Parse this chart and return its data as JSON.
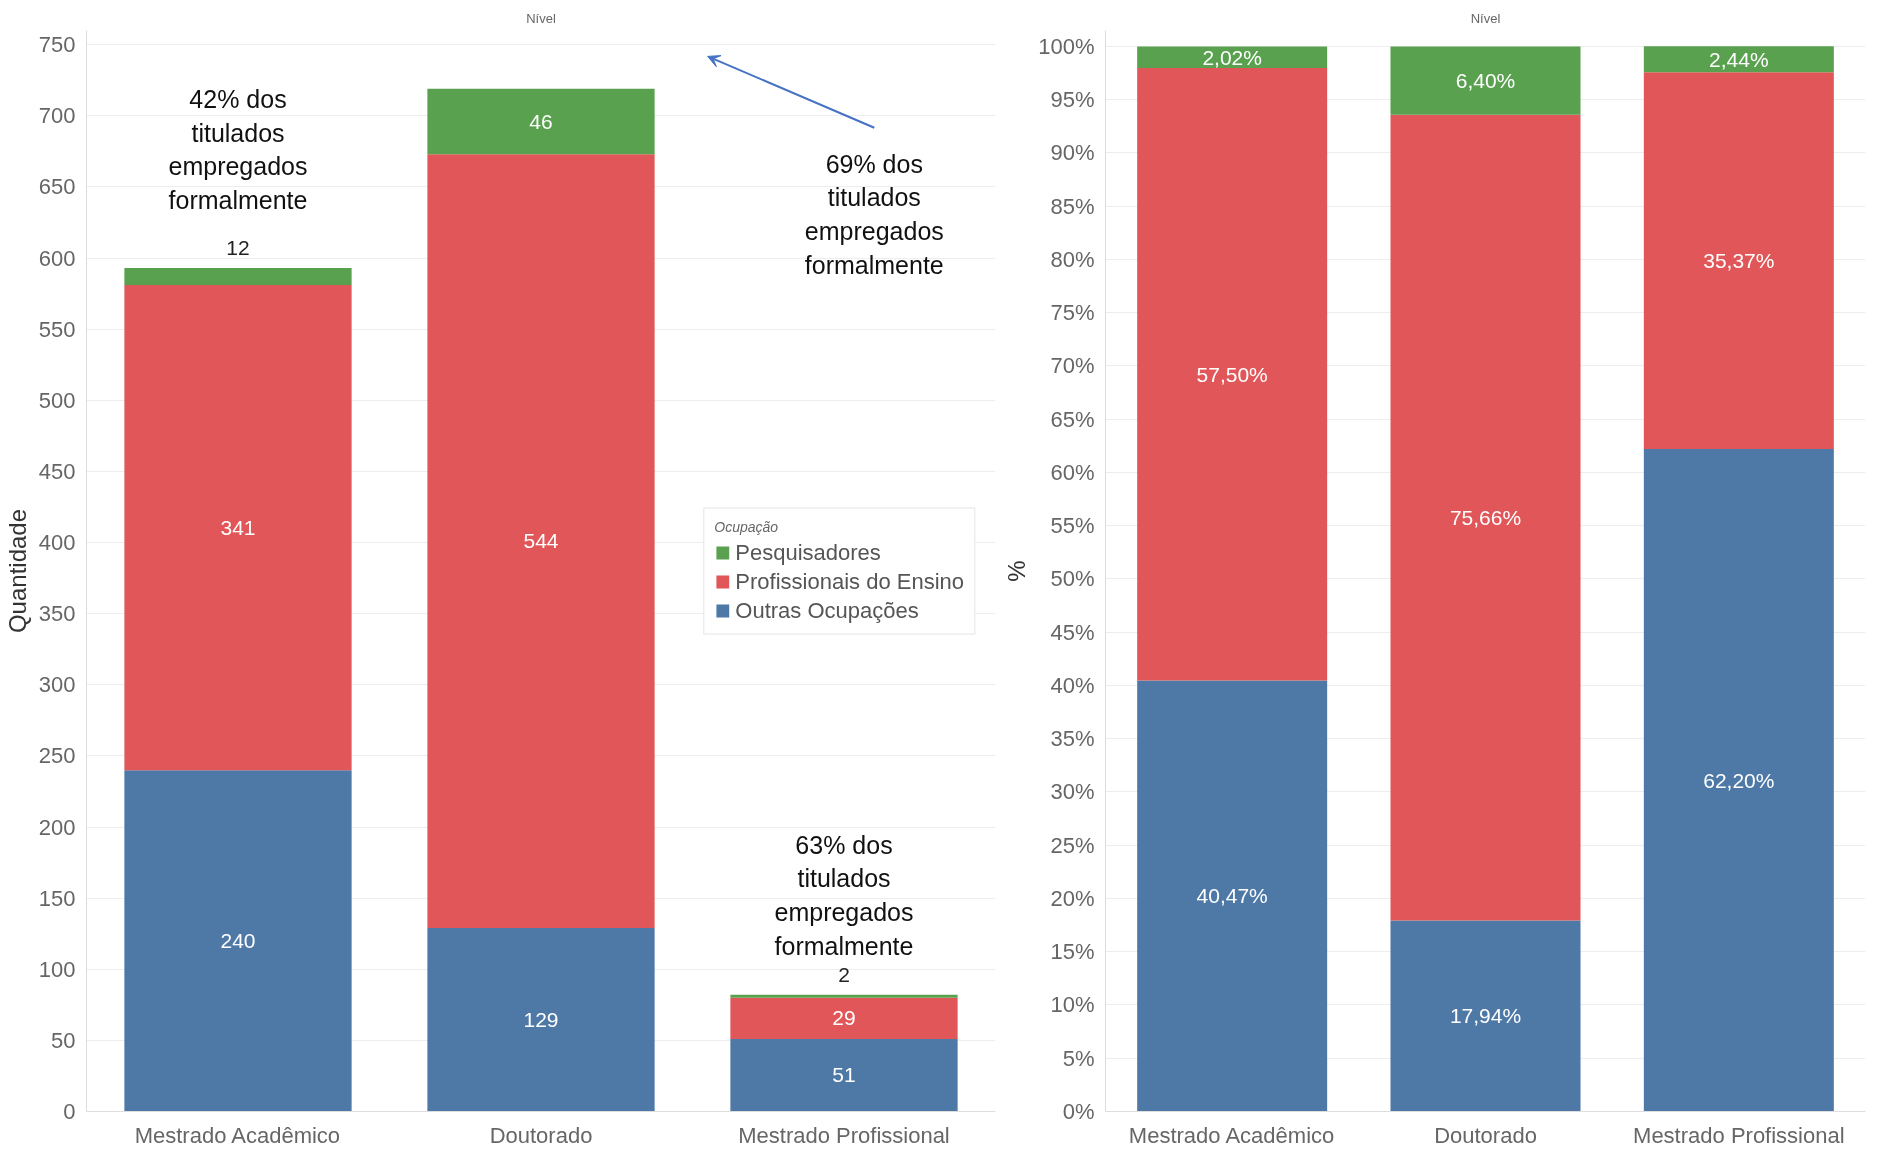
{
  "chart_data": [
    {
      "type": "bar",
      "title": "Nível",
      "ylabel": "Quantidade",
      "legend_title": "Ocupação",
      "categories": [
        "Mestrado Acadêmico",
        "Doutorado",
        "Mestrado Profissional"
      ],
      "stacked": true,
      "data_labels": true,
      "grid": "y",
      "legend": "right",
      "ylim": [
        0,
        760
      ],
      "yticks": [
        0,
        50,
        100,
        150,
        200,
        250,
        300,
        350,
        400,
        450,
        500,
        550,
        600,
        650,
        700,
        750
      ],
      "series": [
        {
          "name": "Outras Ocupações",
          "color": "#4e79a7",
          "values": [
            240,
            129,
            51
          ]
        },
        {
          "name": "Profissionais do Ensino",
          "color": "#e15759",
          "values": [
            341,
            544,
            29
          ]
        },
        {
          "name": "Pesquisadores",
          "color": "#59a14f",
          "values": [
            12,
            46,
            2
          ]
        }
      ],
      "annotations": [
        "42% dos titulados empregados formalmente",
        "69% dos titulados empregados formalmente",
        "63% dos titulados empregados formalmente"
      ]
    },
    {
      "type": "bar",
      "title": "Nível",
      "ylabel": "%",
      "categories": [
        "Mestrado Acadêmico",
        "Doutorado",
        "Mestrado Profissional"
      ],
      "stacked": true,
      "grid": "y",
      "legend": false,
      "ylim": [
        0,
        101.5
      ],
      "yticks": [
        {
          "value": 0,
          "label": "0%"
        },
        {
          "value": 5,
          "label": "5%"
        },
        {
          "value": 10,
          "label": "10%"
        },
        {
          "value": 15,
          "label": "15%"
        },
        {
          "value": 20,
          "label": "20%"
        },
        {
          "value": 25,
          "label": "25%"
        },
        {
          "value": 30,
          "label": "30%"
        },
        {
          "value": 35,
          "label": "35%"
        },
        {
          "value": 40,
          "label": "40%"
        },
        {
          "value": 45,
          "label": "45%"
        },
        {
          "value": 50,
          "label": "50%"
        },
        {
          "value": 55,
          "label": "55%"
        },
        {
          "value": 60,
          "label": "60%"
        },
        {
          "value": 65,
          "label": "65%"
        },
        {
          "value": 70,
          "label": "70%"
        },
        {
          "value": 75,
          "label": "75%"
        },
        {
          "value": 80,
          "label": "80%"
        },
        {
          "value": 85,
          "label": "85%"
        },
        {
          "value": 90,
          "label": "90%"
        },
        {
          "value": 95,
          "label": "95%"
        },
        {
          "value": 100,
          "label": "100%"
        }
      ],
      "series": [
        {
          "color": "#4e79a7",
          "values": [
            40.47,
            17.94,
            62.2
          ],
          "value_labels": [
            "40,47%",
            "17,94%",
            "62,20%"
          ]
        },
        {
          "color": "#e15759",
          "values": [
            57.5,
            75.66,
            35.37
          ],
          "value_labels": [
            "57,50%",
            "75,66%",
            "35,37%"
          ]
        },
        {
          "color": "#59a14f",
          "values": [
            2.02,
            6.4,
            2.44
          ],
          "value_labels": [
            "2,02%",
            "6,40%",
            "2,44%"
          ]
        }
      ]
    }
  ]
}
